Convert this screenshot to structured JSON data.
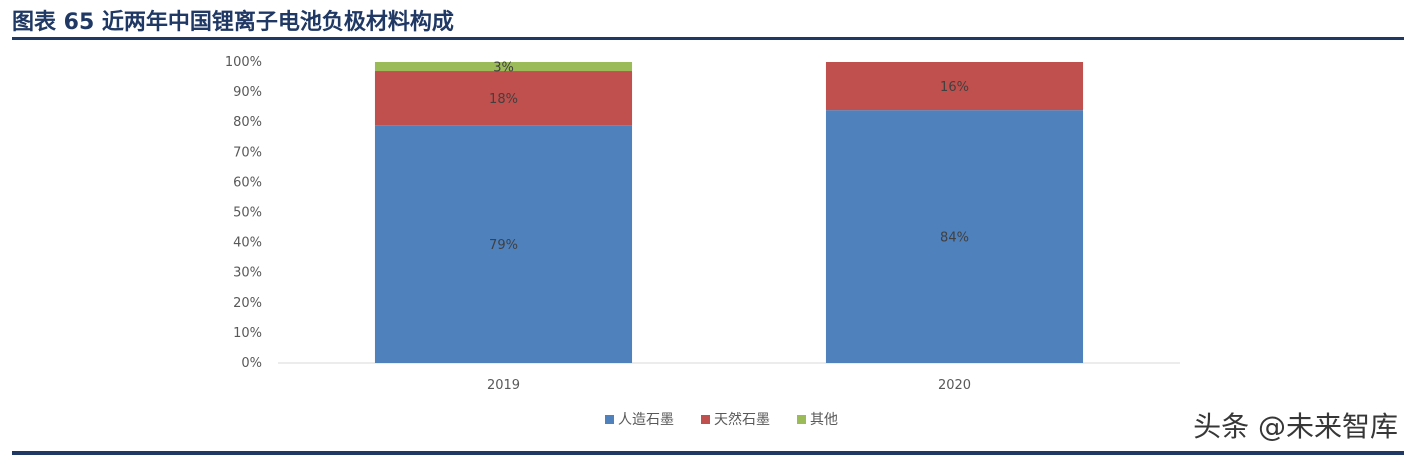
{
  "header": {
    "title": "图表 65 近两年中国锂离子电池负极材料构成"
  },
  "watermark": "头条 @未来智库",
  "chart_data": {
    "type": "bar",
    "stacked": true,
    "title": "",
    "xlabel": "",
    "ylabel": "",
    "ylim": [
      0,
      100
    ],
    "y_ticks": [
      "0%",
      "10%",
      "20%",
      "30%",
      "40%",
      "50%",
      "60%",
      "70%",
      "80%",
      "90%",
      "100%"
    ],
    "categories": [
      "2019",
      "2020"
    ],
    "series": [
      {
        "name": "人造石墨",
        "values": [
          79,
          84
        ],
        "labels": [
          "79%",
          "84%"
        ],
        "color": "#4f81bd"
      },
      {
        "name": "天然石墨",
        "values": [
          18,
          16
        ],
        "labels": [
          "18%",
          "16%"
        ],
        "color": "#c0504d"
      },
      {
        "name": "其他",
        "values": [
          3,
          0
        ],
        "labels": [
          "3%",
          ""
        ],
        "color": "#9bbb59"
      }
    ],
    "legend_position": "bottom",
    "grid": false
  }
}
